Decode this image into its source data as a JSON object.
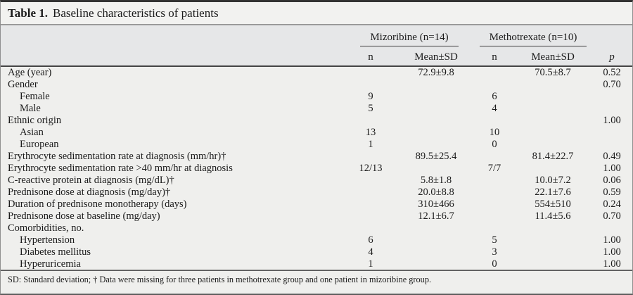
{
  "title": {
    "label": "Table 1.",
    "text": "Baseline characteristics of patients"
  },
  "header": {
    "group1": "Mizoribine (n=14)",
    "group2": "Methotrexate (n=10)",
    "sub_n1": "n",
    "sub_mean1": "Mean±SD",
    "sub_n2": "n",
    "sub_mean2": "Mean±SD",
    "sub_p": "p"
  },
  "table": {
    "columns": [
      "characteristic",
      "mizoribine_n",
      "mizoribine_mean_sd",
      "methotrexate_n",
      "methotrexate_mean_sd",
      "p"
    ],
    "rows": [
      {
        "label": "Age (year)",
        "indent": false,
        "n1": "",
        "mean1": "72.9±9.8",
        "n2": "",
        "mean2": "70.5±8.7",
        "p": "0.52"
      },
      {
        "label": "Gender",
        "indent": false,
        "n1": "",
        "mean1": "",
        "n2": "",
        "mean2": "",
        "p": "0.70"
      },
      {
        "label": "Female",
        "indent": true,
        "n1": "9",
        "mean1": "",
        "n2": "6",
        "mean2": "",
        "p": ""
      },
      {
        "label": "Male",
        "indent": true,
        "n1": "5",
        "mean1": "",
        "n2": "4",
        "mean2": "",
        "p": ""
      },
      {
        "label": "Ethnic origin",
        "indent": false,
        "n1": "",
        "mean1": "",
        "n2": "",
        "mean2": "",
        "p": "1.00"
      },
      {
        "label": "Asian",
        "indent": true,
        "n1": "13",
        "mean1": "",
        "n2": "10",
        "mean2": "",
        "p": ""
      },
      {
        "label": "European",
        "indent": true,
        "n1": "1",
        "mean1": "",
        "n2": "0",
        "mean2": "",
        "p": ""
      },
      {
        "label": "Erythrocyte sedimentation rate at diagnosis (mm/hr)†",
        "indent": false,
        "n1": "",
        "mean1": "89.5±25.4",
        "n2": "",
        "mean2": "81.4±22.7",
        "p": "0.49"
      },
      {
        "label": "Erythrocyte sedimentation rate >40 mm/hr at diagnosis",
        "indent": false,
        "n1": "12/13",
        "mean1": "",
        "n2": "7/7",
        "mean2": "",
        "p": "1.00"
      },
      {
        "label": "C-reactive protein at diagnosis (mg/dL)†",
        "indent": false,
        "n1": "",
        "mean1": "5.8±1.8",
        "n2": "",
        "mean2": "10.0±7.2",
        "p": "0.06"
      },
      {
        "label": "Prednisone dose at diagnosis (mg/day)†",
        "indent": false,
        "n1": "",
        "mean1": "20.0±8.8",
        "n2": "",
        "mean2": "22.1±7.6",
        "p": "0.59"
      },
      {
        "label": "Duration of prednisone monotherapy (days)",
        "indent": false,
        "n1": "",
        "mean1": "310±466",
        "n2": "",
        "mean2": "554±510",
        "p": "0.24"
      },
      {
        "label": "Prednisone dose at baseline (mg/day)",
        "indent": false,
        "n1": "",
        "mean1": "12.1±6.7",
        "n2": "",
        "mean2": "11.4±5.6",
        "p": "0.70"
      },
      {
        "label": "Comorbidities, no.",
        "indent": false,
        "n1": "",
        "mean1": "",
        "n2": "",
        "mean2": "",
        "p": ""
      },
      {
        "label": "Hypertension",
        "indent": true,
        "n1": "6",
        "mean1": "",
        "n2": "5",
        "mean2": "",
        "p": "1.00"
      },
      {
        "label": "Diabetes mellitus",
        "indent": true,
        "n1": "4",
        "mean1": "",
        "n2": "3",
        "mean2": "",
        "p": "1.00"
      },
      {
        "label": "Hyperuricemia",
        "indent": true,
        "n1": "1",
        "mean1": "",
        "n2": "0",
        "mean2": "",
        "p": "1.00"
      }
    ]
  },
  "footnote": "SD: Standard deviation; † Data were missing for three patients in methotrexate group and one patient in mizoribine group.",
  "colors": {
    "title_bg": "#f2f2f0",
    "header_bg": "#e6e7e8",
    "body_bg": "#efefed",
    "text": "#1b1b1b",
    "top_border": "#333333"
  }
}
